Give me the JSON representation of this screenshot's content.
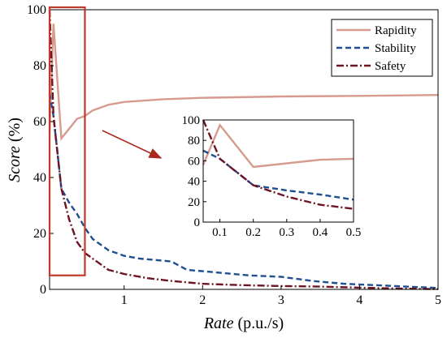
{
  "chart_data": {
    "type": "line",
    "xlabel_italic": "Rate",
    "xlabel_unit": "(p.u./s)",
    "ylabel_italic": "Score",
    "ylabel_unit": "(%)",
    "xlim": [
      0.05,
      5
    ],
    "ylim": [
      0,
      100
    ],
    "xticks": [
      1,
      2,
      3,
      4,
      5
    ],
    "yticks": [
      0,
      20,
      40,
      60,
      80,
      100
    ],
    "legend_position": "top-right",
    "series": [
      {
        "name": "Rapidity",
        "color": "#d69a8e",
        "dash": "solid",
        "x": [
          0.05,
          0.1,
          0.2,
          0.4,
          0.5,
          0.6,
          0.8,
          1.0,
          1.5,
          2.0,
          3.0,
          4.0,
          5.0
        ],
        "y": [
          56,
          95,
          54,
          61,
          62,
          64,
          66,
          67,
          68,
          68.5,
          69,
          69.2,
          69.5
        ]
      },
      {
        "name": "Stability",
        "color": "#1f4e91",
        "dash": "dashed",
        "x": [
          0.05,
          0.1,
          0.2,
          0.3,
          0.4,
          0.5,
          0.6,
          0.8,
          1.0,
          1.2,
          1.6,
          1.8,
          2.2,
          2.6,
          3.0,
          3.4,
          3.8,
          4.2,
          4.6,
          5.0
        ],
        "y": [
          70,
          62,
          36,
          31,
          27,
          22,
          18,
          14,
          12,
          11,
          10,
          7,
          6,
          5,
          4.5,
          3,
          2,
          1.5,
          1,
          0.5
        ]
      },
      {
        "name": "Safety",
        "color": "#6e1423",
        "dash": "dashdot",
        "x": [
          0.05,
          0.1,
          0.2,
          0.3,
          0.4,
          0.5,
          0.6,
          0.8,
          1.0,
          1.3,
          1.6,
          2.0,
          2.5,
          3.0,
          3.5,
          4.0,
          4.5,
          5.0
        ],
        "y": [
          100,
          62,
          36,
          25,
          17,
          13,
          11,
          7,
          5.5,
          4,
          3,
          2,
          1.5,
          1.2,
          1,
          0.6,
          0.3,
          0.1
        ]
      }
    ],
    "inset": {
      "xlim": [
        0.05,
        0.5
      ],
      "ylim": [
        0,
        100
      ],
      "xticks": [
        "0.1",
        "0.2",
        "0.3",
        "0.4",
        "0.5"
      ],
      "yticks": [
        "0",
        "20",
        "40",
        "60",
        "80",
        "100"
      ]
    },
    "highlight": {
      "x_range": [
        0.05,
        0.5
      ],
      "y_range": [
        5,
        100
      ],
      "color": "#c0392b"
    }
  }
}
